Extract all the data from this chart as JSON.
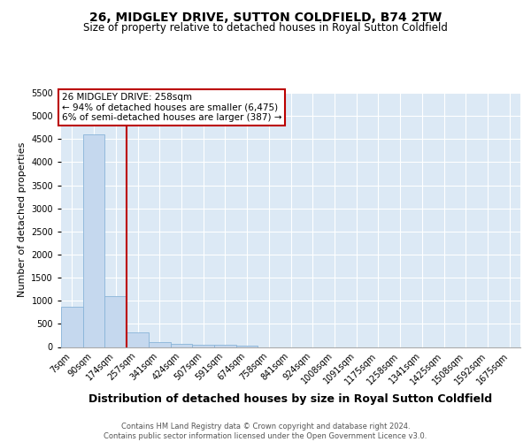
{
  "title_line1": "26, MIDGLEY DRIVE, SUTTON COLDFIELD, B74 2TW",
  "title_line2": "Size of property relative to detached houses in Royal Sutton Coldfield",
  "xlabel": "Distribution of detached houses by size in Royal Sutton Coldfield",
  "ylabel": "Number of detached properties",
  "footnote": "Contains HM Land Registry data © Crown copyright and database right 2024.\nContains public sector information licensed under the Open Government Licence v3.0.",
  "bin_labels": [
    "7sqm",
    "90sqm",
    "174sqm",
    "257sqm",
    "341sqm",
    "424sqm",
    "507sqm",
    "591sqm",
    "674sqm",
    "758sqm",
    "841sqm",
    "924sqm",
    "1008sqm",
    "1091sqm",
    "1175sqm",
    "1258sqm",
    "1341sqm",
    "1425sqm",
    "1508sqm",
    "1592sqm",
    "1675sqm"
  ],
  "bar_heights": [
    870,
    4600,
    1100,
    310,
    100,
    70,
    50,
    50,
    30,
    0,
    0,
    0,
    0,
    0,
    0,
    0,
    0,
    0,
    0,
    0,
    0
  ],
  "bar_color": "#c5d8ee",
  "bar_edgecolor": "#89b4d8",
  "property_line_bin": 3,
  "annotation_text": "26 MIDGLEY DRIVE: 258sqm\n← 94% of detached houses are smaller (6,475)\n6% of semi-detached houses are larger (387) →",
  "annotation_box_color": "#bb0000",
  "ylim": [
    0,
    5500
  ],
  "yticks": [
    0,
    500,
    1000,
    1500,
    2000,
    2500,
    3000,
    3500,
    4000,
    4500,
    5000,
    5500
  ],
  "grid_color": "#ffffff",
  "bg_color": "#dce9f5",
  "title_fontsize": 10,
  "subtitle_fontsize": 8.5,
  "ylabel_fontsize": 8,
  "xlabel_fontsize": 9,
  "tick_fontsize": 7,
  "annot_fontsize": 7.5
}
